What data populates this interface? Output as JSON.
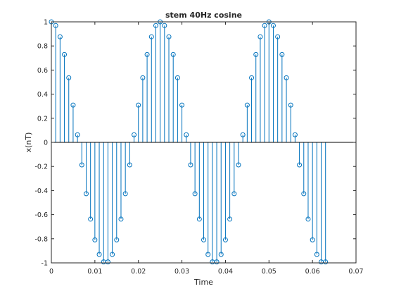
{
  "chart_data": {
    "type": "stem",
    "title": "stem 40Hz cosine",
    "xlabel": "Time",
    "ylabel": "x(nT)",
    "xlim": [
      0,
      0.07
    ],
    "ylim": [
      -1,
      1
    ],
    "xticks": [
      0,
      0.01,
      0.02,
      0.03,
      0.04,
      0.05,
      0.06,
      0.07
    ],
    "xtick_labels": [
      "0",
      "0.01",
      "0.02",
      "0.03",
      "0.04",
      "0.05",
      "0.06",
      "0.07"
    ],
    "yticks": [
      -1,
      -0.8,
      -0.6,
      -0.4,
      -0.2,
      0,
      0.2,
      0.4,
      0.6,
      0.8,
      1
    ],
    "ytick_labels": [
      "-1",
      "-0.8",
      "-0.6",
      "-0.4",
      "-0.2",
      "0",
      "0.2",
      "0.4",
      "0.6",
      "0.8",
      "1"
    ],
    "grid": false,
    "baseline": 0,
    "color": "#0072bd",
    "marker": "open-circle",
    "x": [
      0,
      0.001,
      0.002,
      0.003,
      0.004,
      0.005,
      0.006,
      0.007,
      0.008,
      0.009,
      0.01,
      0.011,
      0.012,
      0.013,
      0.014,
      0.015,
      0.016,
      0.017,
      0.018,
      0.019,
      0.02,
      0.021,
      0.022,
      0.023,
      0.024,
      0.025,
      0.026,
      0.027,
      0.028,
      0.029,
      0.03,
      0.031,
      0.032,
      0.033,
      0.034,
      0.035,
      0.036,
      0.037,
      0.038,
      0.039,
      0.04,
      0.041,
      0.042,
      0.043,
      0.044,
      0.045,
      0.046,
      0.047,
      0.048,
      0.049,
      0.05,
      0.051,
      0.052,
      0.053,
      0.054,
      0.055,
      0.056,
      0.057,
      0.058,
      0.059,
      0.06,
      0.061,
      0.062,
      0.063
    ],
    "y": [
      1,
      0.969,
      0.876,
      0.729,
      0.536,
      0.309,
      0.063,
      -0.187,
      -0.426,
      -0.637,
      -0.809,
      -0.93,
      -0.992,
      -0.992,
      -0.93,
      -0.809,
      -0.637,
      -0.426,
      -0.187,
      0.063,
      0.309,
      0.536,
      0.729,
      0.876,
      0.969,
      1,
      0.969,
      0.876,
      0.729,
      0.536,
      0.309,
      0.063,
      -0.187,
      -0.426,
      -0.637,
      -0.809,
      -0.93,
      -0.992,
      -0.992,
      -0.93,
      -0.809,
      -0.637,
      -0.426,
      -0.187,
      0.063,
      0.309,
      0.536,
      0.729,
      0.876,
      0.969,
      1,
      0.969,
      0.876,
      0.729,
      0.536,
      0.309,
      0.063,
      -0.187,
      -0.426,
      -0.637,
      -0.809,
      -0.93,
      -0.992,
      -0.992
    ]
  }
}
